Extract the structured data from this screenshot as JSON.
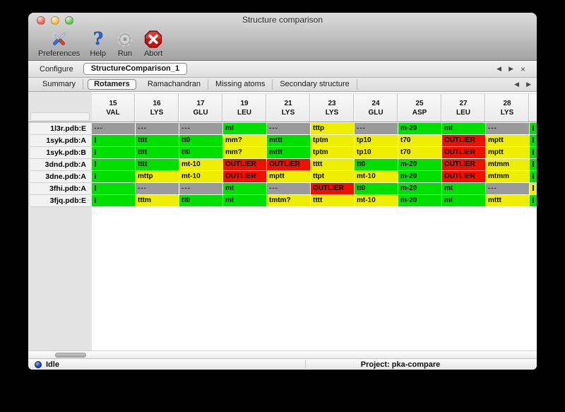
{
  "window": {
    "title": "Structure comparison"
  },
  "toolbar": {
    "items": [
      {
        "label": "Preferences",
        "icon": "tools-icon"
      },
      {
        "label": "Help",
        "icon": "help-icon"
      },
      {
        "label": "Run",
        "icon": "gear-icon"
      },
      {
        "label": "Abort",
        "icon": "abort-icon"
      }
    ]
  },
  "configure": {
    "label": "Configure",
    "value": "StructureComparison_1"
  },
  "tabs": {
    "items": [
      "Summary",
      "Rotamers",
      "Ramachandran",
      "Missing atoms",
      "Secondary structure"
    ],
    "selected": "Rotamers"
  },
  "icons": {
    "prev": "◀",
    "next": "▶",
    "close": "×"
  },
  "colors": {
    "cell": {
      "green": "#00e000",
      "yellow": "#eeee00",
      "red": "#ee1100",
      "gray": "#9a9a9a"
    },
    "traffic": {
      "close": "#ec6559",
      "minimize": "#f6bf4f",
      "zoom": "#62c554"
    },
    "status_dot": "#1c49c8"
  },
  "table": {
    "columns": [
      {
        "num": "15",
        "res": "VAL"
      },
      {
        "num": "16",
        "res": "LYS"
      },
      {
        "num": "17",
        "res": "GLU"
      },
      {
        "num": "19",
        "res": "LEU"
      },
      {
        "num": "21",
        "res": "LYS"
      },
      {
        "num": "23",
        "res": "LYS"
      },
      {
        "num": "24",
        "res": "GLU"
      },
      {
        "num": "25",
        "res": "ASP"
      },
      {
        "num": "27",
        "res": "LEU"
      },
      {
        "num": "28",
        "res": "LYS"
      }
    ],
    "rows": [
      {
        "label": "1l3r.pdb:E",
        "edge": "green",
        "cells": [
          [
            "---",
            "gray"
          ],
          [
            "---",
            "gray"
          ],
          [
            "---",
            "gray"
          ],
          [
            "mt",
            "green"
          ],
          [
            "---",
            "gray"
          ],
          [
            "tttp",
            "yellow"
          ],
          [
            "---",
            "gray"
          ],
          [
            "m-20",
            "green"
          ],
          [
            "mt",
            "green"
          ],
          [
            "---",
            "gray"
          ]
        ]
      },
      {
        "label": "1syk.pdb:A",
        "edge": "green",
        "cells": [
          [
            "",
            "green"
          ],
          [
            "tttt",
            "green"
          ],
          [
            "tt0",
            "green"
          ],
          [
            "mm?",
            "yellow"
          ],
          [
            "mttt",
            "green"
          ],
          [
            "tptm",
            "yellow"
          ],
          [
            "tp10",
            "yellow"
          ],
          [
            "t70",
            "yellow"
          ],
          [
            "OUTLIER",
            "red"
          ],
          [
            "mptt",
            "yellow"
          ]
        ]
      },
      {
        "label": "1syk.pdb:B",
        "edge": "green",
        "cells": [
          [
            "",
            "green"
          ],
          [
            "tttt",
            "green"
          ],
          [
            "tt0",
            "green"
          ],
          [
            "mm?",
            "yellow"
          ],
          [
            "mttt",
            "green"
          ],
          [
            "tptm",
            "yellow"
          ],
          [
            "tp10",
            "yellow"
          ],
          [
            "t70",
            "yellow"
          ],
          [
            "OUTLIER",
            "red"
          ],
          [
            "mptt",
            "yellow"
          ]
        ]
      },
      {
        "label": "3dnd.pdb:A",
        "edge": "green",
        "cells": [
          [
            "",
            "green"
          ],
          [
            "tttt",
            "green"
          ],
          [
            "mt-10",
            "yellow"
          ],
          [
            "OUTLIER",
            "red"
          ],
          [
            "OUTLIER",
            "red"
          ],
          [
            "tttt",
            "yellow"
          ],
          [
            "tt0",
            "green"
          ],
          [
            "m-20",
            "green"
          ],
          [
            "OUTLIER",
            "red"
          ],
          [
            "mtmm",
            "yellow"
          ]
        ]
      },
      {
        "label": "3dne.pdb:A",
        "edge": "green",
        "cells": [
          [
            "",
            "green"
          ],
          [
            "mttp",
            "yellow"
          ],
          [
            "mt-10",
            "yellow"
          ],
          [
            "OUTLIER",
            "red"
          ],
          [
            "mptt",
            "yellow"
          ],
          [
            "ttpt",
            "yellow"
          ],
          [
            "mt-10",
            "yellow"
          ],
          [
            "m-20",
            "green"
          ],
          [
            "OUTLIER",
            "red"
          ],
          [
            "mtmm",
            "yellow"
          ]
        ]
      },
      {
        "label": "3fhi.pdb:A",
        "edge": "yellow",
        "cells": [
          [
            "",
            "green"
          ],
          [
            "---",
            "gray"
          ],
          [
            "---",
            "gray"
          ],
          [
            "mt",
            "green"
          ],
          [
            "---",
            "gray"
          ],
          [
            "OUTLIER",
            "red"
          ],
          [
            "tt0",
            "green"
          ],
          [
            "m-20",
            "green"
          ],
          [
            "mt",
            "green"
          ],
          [
            "---",
            "gray"
          ]
        ]
      },
      {
        "label": "3fjq.pdb:E",
        "edge": "green",
        "cells": [
          [
            "",
            "green"
          ],
          [
            "tttm",
            "yellow"
          ],
          [
            "tt0",
            "green"
          ],
          [
            "mt",
            "green"
          ],
          [
            "tmtm?",
            "yellow"
          ],
          [
            "tttt",
            "yellow"
          ],
          [
            "mt-10",
            "yellow"
          ],
          [
            "m-20",
            "green"
          ],
          [
            "mt",
            "green"
          ],
          [
            "mttt",
            "yellow"
          ]
        ]
      }
    ]
  },
  "statusbar": {
    "status": "Idle",
    "project": "Project: pka-compare"
  }
}
